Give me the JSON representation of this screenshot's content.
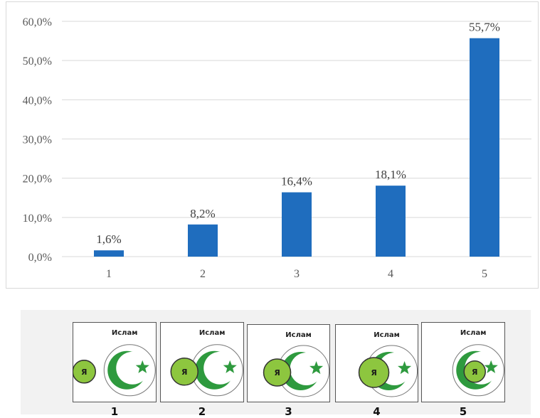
{
  "chart_data": {
    "type": "bar",
    "categories": [
      "1",
      "2",
      "3",
      "4",
      "5"
    ],
    "values": [
      1.6,
      8.2,
      16.4,
      18.1,
      55.7
    ],
    "value_labels": [
      "1,6%",
      "8,2%",
      "16,4%",
      "18,1%",
      "55,7%"
    ],
    "y_ticks": [
      0,
      10,
      20,
      30,
      40,
      50,
      60
    ],
    "y_tick_labels": [
      "0,0%",
      "10,0%",
      "20,0%",
      "30,0%",
      "40,0%",
      "50,0%",
      "60,0%"
    ],
    "ylim": [
      0,
      60
    ],
    "grid": true,
    "bar_color": "#1f6dbe",
    "grid_color": "#d9d9d9",
    "title": "",
    "xlabel": "",
    "ylabel": ""
  },
  "legend": {
    "word": "Ислам",
    "self_label": "Я",
    "numbers": [
      "1",
      "2",
      "3",
      "4",
      "5"
    ],
    "colors": {
      "self_fill": "#8dc63f",
      "islam_green": "#2e9a3e",
      "panel": "#f2f2f2"
    }
  }
}
